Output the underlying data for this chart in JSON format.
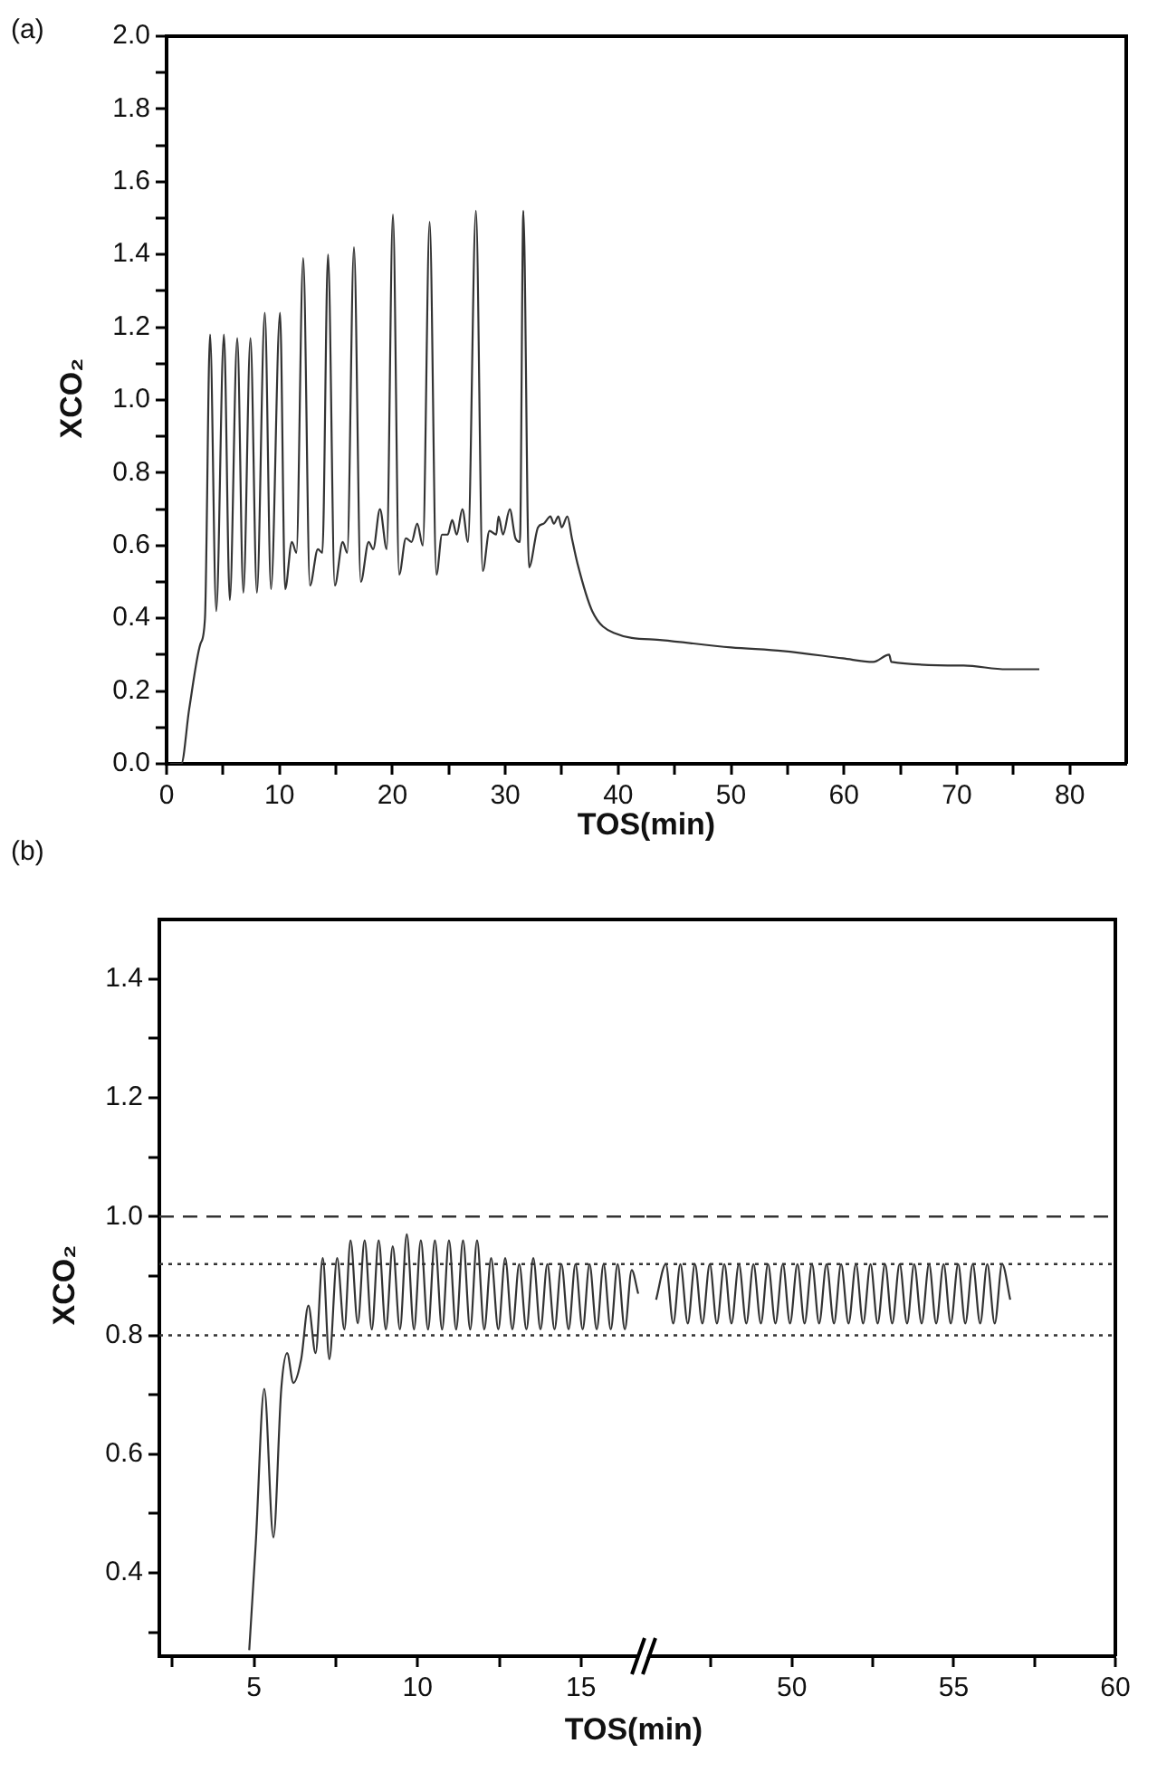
{
  "chart_data": [
    {
      "type": "line",
      "title": "(a)",
      "xlabel": "TOS(min)",
      "ylabel": "XCO₂",
      "xlim": [
        0,
        85
      ],
      "ylim": [
        0,
        2
      ],
      "xticks": [
        0,
        {
          "value": 5,
          "label": null
        },
        10,
        {
          "value": 15,
          "label": null
        },
        20,
        {
          "value": 25,
          "label": null
        },
        30,
        {
          "value": 35,
          "label": null
        },
        40,
        {
          "value": 45,
          "label": null
        },
        50,
        {
          "value": 55,
          "label": null
        },
        60,
        {
          "value": 65,
          "label": null
        },
        70,
        {
          "value": 75,
          "label": null
        },
        80
      ],
      "yticks": [
        {
          "value": 0,
          "label": "0.0"
        },
        {
          "value": 0.1,
          "label": null
        },
        {
          "value": 0.2,
          "label": "0.2"
        },
        {
          "value": 0.3,
          "label": null
        },
        {
          "value": 0.4,
          "label": "0.4"
        },
        {
          "value": 0.5,
          "label": null
        },
        {
          "value": 0.6,
          "label": "0.6"
        },
        {
          "value": 0.7,
          "label": null
        },
        {
          "value": 0.8,
          "label": "0.8"
        },
        {
          "value": 0.9,
          "label": null
        },
        {
          "value": 1,
          "label": "1.0"
        },
        {
          "value": 1.1,
          "label": null
        },
        {
          "value": 1.2,
          "label": "1.2"
        },
        {
          "value": 1.3,
          "label": null
        },
        {
          "value": 1.4,
          "label": "1.4"
        },
        {
          "value": 1.5,
          "label": null
        },
        {
          "value": 1.6,
          "label": "1.6"
        },
        {
          "value": 1.7,
          "label": null
        },
        {
          "value": 1.8,
          "label": "1.8"
        },
        {
          "value": 1.9,
          "label": null
        },
        {
          "value": 2,
          "label": "2.0"
        }
      ],
      "grid": false,
      "series": [
        {
          "color": "#333333",
          "x": [
            0.3,
            1.3,
            2.0,
            3.0,
            3.4,
            3.85,
            4.4,
            5.08,
            5.6,
            6.26,
            6.8,
            7.43,
            8.0,
            8.7,
            9.25,
            10.05,
            10.5,
            11.1,
            11.5,
            12.1,
            12.7,
            13.4,
            13.8,
            14.3,
            14.9,
            15.6,
            16.0,
            16.6,
            17.2,
            17.9,
            18.3,
            18.9,
            19.5,
            20.05,
            20.6,
            21.2,
            21.7,
            22.2,
            22.7,
            23.3,
            23.9,
            24.4,
            24.9,
            25.3,
            25.7,
            26.2,
            26.7,
            27.4,
            28.0,
            28.6,
            29.2,
            29.4,
            29.8,
            30.4,
            30.9,
            31.3,
            31.6,
            32.1,
            32.9,
            33.4,
            34.0,
            34.3,
            34.7,
            35.0,
            35.5,
            35.9,
            36.4,
            37.7,
            39.6,
            43.9,
            50,
            54.6,
            59.9,
            62.6,
            64.0,
            64.2,
            70.6,
            74.4,
            77.3
          ],
          "values": [
            0,
            0,
            0.15,
            0.33,
            0.4,
            1.18,
            0.42,
            1.18,
            0.45,
            1.17,
            0.47,
            1.17,
            0.47,
            1.24,
            0.48,
            1.24,
            0.48,
            0.61,
            0.58,
            1.39,
            0.49,
            0.59,
            0.58,
            1.4,
            0.49,
            0.61,
            0.58,
            1.42,
            0.5,
            0.61,
            0.59,
            0.7,
            0.59,
            1.51,
            0.52,
            0.62,
            0.61,
            0.66,
            0.6,
            1.49,
            0.52,
            0.63,
            0.63,
            0.67,
            0.63,
            0.7,
            0.61,
            1.52,
            0.53,
            0.64,
            0.63,
            0.68,
            0.63,
            0.7,
            0.62,
            0.61,
            1.52,
            0.54,
            0.65,
            0.66,
            0.68,
            0.66,
            0.68,
            0.65,
            0.68,
            0.62,
            0.55,
            0.42,
            0.36,
            0.34,
            0.32,
            0.31,
            0.29,
            0.28,
            0.3,
            0.28,
            0.27,
            0.26,
            0.26
          ]
        }
      ]
    },
    {
      "type": "line",
      "title": "(b)",
      "xlabel": "TOS(min)",
      "ylabel": "XCO₂",
      "xlim": [
        2.1,
        17
      ],
      "ylim": [
        0.26,
        1.5
      ],
      "xticks": [
        {
          "value": 2.5,
          "label": null
        },
        5,
        {
          "value": 7.5,
          "label": null
        },
        10,
        {
          "value": 12.5,
          "label": null
        },
        15
      ],
      "yticks": [
        {
          "value": 0.3,
          "label": null
        },
        0.4,
        {
          "value": 0.5,
          "label": null
        },
        0.6,
        {
          "value": 0.7,
          "label": null
        },
        0.8,
        {
          "value": 0.9,
          "label": null
        },
        {
          "value": 1,
          "label": "1.0"
        },
        {
          "value": 1.1,
          "label": null
        },
        1.2,
        {
          "value": 1.3,
          "label": null
        },
        1.4
      ],
      "grid": false,
      "ref_lines": [
        {
          "axis": "y",
          "value": 1,
          "line_style": "dashed",
          "color": "#333333"
        },
        {
          "axis": "y",
          "value": 0.92,
          "line_style": "dotted",
          "color": "#333333"
        },
        {
          "axis": "y",
          "value": 0.8,
          "line_style": "dotted",
          "color": "#333333"
        }
      ],
      "series": [
        {
          "color": "#333333",
          "x": [
            4.85,
            5.05,
            5.31,
            5.59,
            5.83,
            6.01,
            6.2,
            6.44,
            6.66,
            6.88,
            7.1,
            7.3,
            7.54,
            7.76,
            7.95,
            8.17,
            8.38,
            8.6,
            8.81,
            9.03,
            9.24,
            9.46,
            9.67,
            9.89,
            10.1,
            10.32,
            10.53,
            10.75,
            10.96,
            11.18,
            11.39,
            11.61,
            11.82,
            12.04,
            12.25,
            12.47,
            12.68,
            12.9,
            13.11,
            13.33,
            13.54,
            13.76,
            13.97,
            14.19,
            14.4,
            14.62,
            14.83,
            15.05,
            15.26,
            15.48,
            15.69,
            15.91,
            16.12,
            16.34,
            16.55,
            16.75
          ],
          "values": [
            0.27,
            0.45,
            0.71,
            0.46,
            0.71,
            0.77,
            0.72,
            0.76,
            0.85,
            0.77,
            0.93,
            0.76,
            0.93,
            0.81,
            0.96,
            0.82,
            0.96,
            0.81,
            0.96,
            0.81,
            0.95,
            0.81,
            0.97,
            0.81,
            0.96,
            0.81,
            0.96,
            0.81,
            0.96,
            0.81,
            0.96,
            0.81,
            0.96,
            0.81,
            0.93,
            0.81,
            0.93,
            0.81,
            0.92,
            0.81,
            0.93,
            0.81,
            0.92,
            0.81,
            0.92,
            0.81,
            0.92,
            0.81,
            0.92,
            0.81,
            0.92,
            0.81,
            0.92,
            0.81,
            0.91,
            0.87
          ]
        }
      ]
    },
    {
      "type": "line",
      "xlim": [
        45.5,
        60
      ],
      "ylim": [
        0.26,
        1.5
      ],
      "tick_labels": "x",
      "xticks": [
        {
          "value": 47.5,
          "label": null
        },
        50,
        {
          "value": 52.5,
          "label": null
        },
        55,
        {
          "value": 57.5,
          "label": null
        },
        60
      ],
      "grid": false,
      "ref_lines": [
        {
          "axis": "y",
          "value": 1,
          "line_style": "dashed",
          "color": "#333333"
        },
        {
          "axis": "y",
          "value": 0.92,
          "line_style": "dotted",
          "color": "#333333"
        },
        {
          "axis": "y",
          "value": 0.8,
          "line_style": "dotted",
          "color": "#333333"
        }
      ],
      "series": [
        {
          "color": "#333333",
          "x": [
            45.8,
            46.1,
            46.33,
            46.55,
            46.78,
            47.0,
            47.23,
            47.46,
            47.68,
            47.91,
            48.13,
            48.36,
            48.59,
            48.81,
            49.04,
            49.26,
            49.49,
            49.72,
            49.94,
            50.17,
            50.39,
            50.62,
            50.84,
            51.07,
            51.3,
            51.52,
            51.75,
            51.98,
            52.2,
            52.43,
            52.65,
            52.88,
            53.1,
            53.33,
            53.56,
            53.78,
            54.01,
            54.24,
            54.46,
            54.69,
            54.91,
            55.14,
            55.36,
            55.59,
            55.82,
            56.04,
            56.27,
            56.5,
            56.75
          ],
          "values": [
            0.86,
            0.92,
            0.82,
            0.92,
            0.82,
            0.92,
            0.82,
            0.92,
            0.82,
            0.92,
            0.82,
            0.92,
            0.82,
            0.92,
            0.82,
            0.92,
            0.82,
            0.92,
            0.82,
            0.92,
            0.82,
            0.92,
            0.82,
            0.92,
            0.82,
            0.92,
            0.82,
            0.92,
            0.82,
            0.92,
            0.82,
            0.92,
            0.82,
            0.92,
            0.82,
            0.92,
            0.82,
            0.92,
            0.82,
            0.92,
            0.82,
            0.92,
            0.82,
            0.92,
            0.82,
            0.92,
            0.82,
            0.92,
            0.86
          ]
        }
      ]
    }
  ]
}
